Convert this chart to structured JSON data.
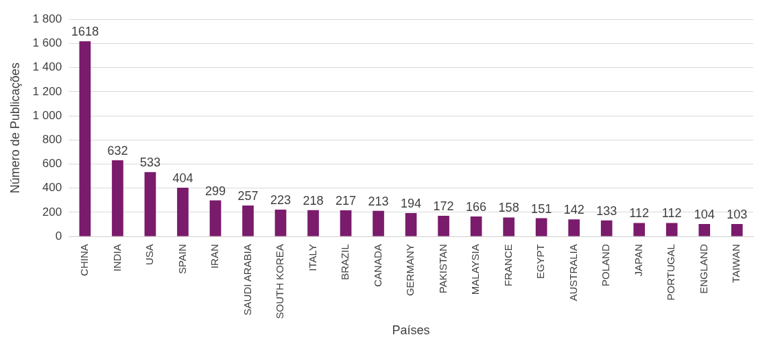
{
  "chart_data": {
    "type": "bar",
    "xlabel": "Países",
    "ylabel": "Número de Publicações",
    "categories": [
      "CHINA",
      "INDIA",
      "USA",
      "SPAIN",
      "IRAN",
      "SAUDI ARABIA",
      "SOUTH KOREA",
      "ITALY",
      "BRAZIL",
      "CANADA",
      "GERMANY",
      "PAKISTAN",
      "MALAYSIA",
      "FRANCE",
      "EGYPT",
      "AUSTRALIA",
      "POLAND",
      "JAPAN",
      "PORTUGAL",
      "ENGLAND",
      "TAIWAN"
    ],
    "values": [
      1618,
      632,
      533,
      404,
      299,
      257,
      223,
      218,
      217,
      213,
      194,
      172,
      166,
      158,
      151,
      142,
      133,
      112,
      112,
      104,
      103
    ],
    "color": "#7a1b6c",
    "ylim": [
      0,
      1800
    ],
    "yticks": [
      0,
      200,
      400,
      600,
      800,
      {
        "value": 1000,
        "label": "1 000"
      },
      {
        "value": 1200,
        "label": "1 200"
      },
      {
        "value": 1400,
        "label": "1 400"
      },
      {
        "value": 1600,
        "label": "1 600"
      },
      {
        "value": 1800,
        "label": "1 800"
      }
    ],
    "grid": "y",
    "legend": false,
    "data_labels": true
  }
}
